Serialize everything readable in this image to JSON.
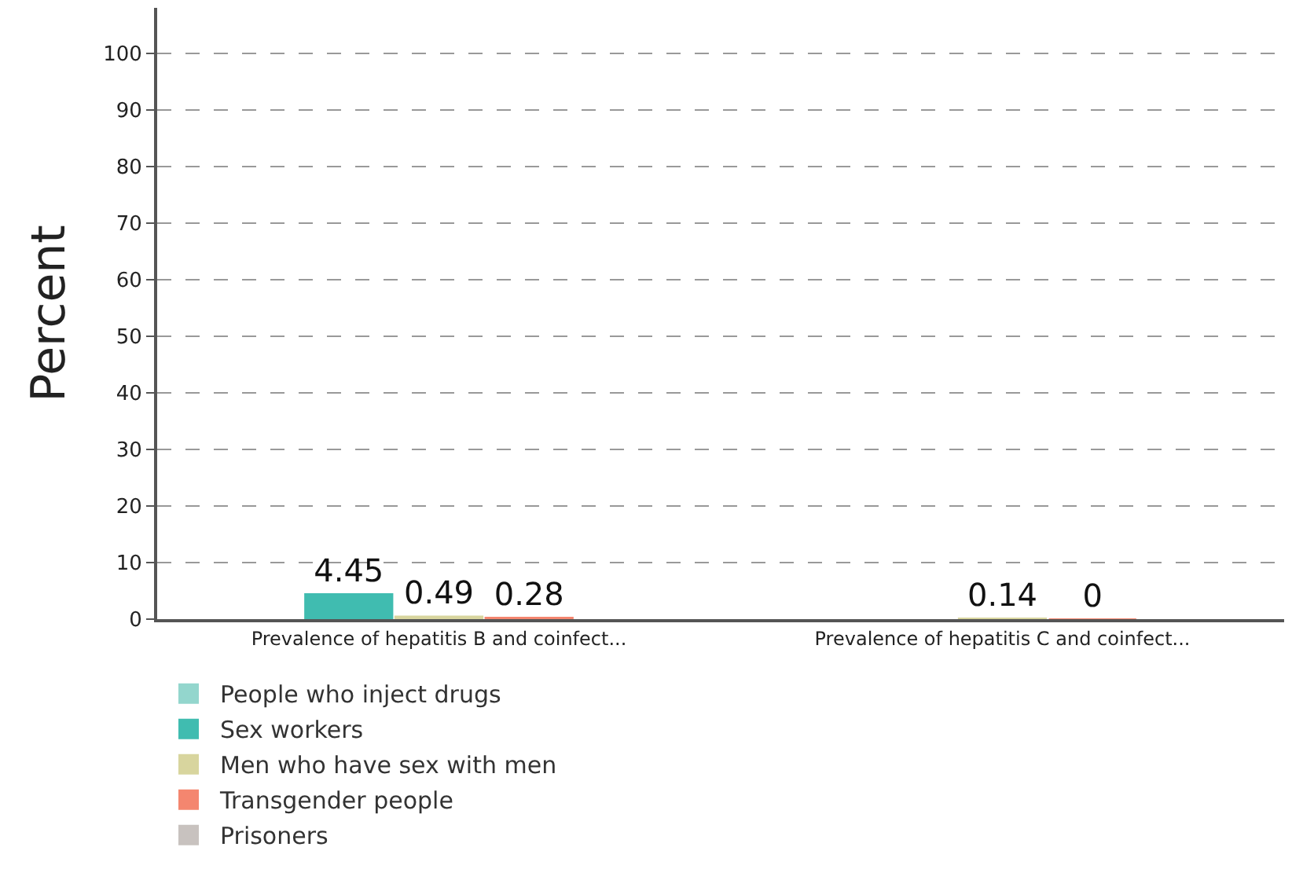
{
  "chart_data": {
    "type": "bar",
    "ylabel": "Percent",
    "categories": [
      "Prevalence of hepatitis B and coinfect...",
      "Prevalence of hepatitis C and coinfect..."
    ],
    "series": [
      {
        "name": "People who inject drugs",
        "color": "#93d6cd",
        "values": [
          null,
          null
        ]
      },
      {
        "name": "Sex workers",
        "color": "#40bcb0",
        "values": [
          4.45,
          null
        ]
      },
      {
        "name": "Men who have sex with men",
        "color": "#d8d59e",
        "values": [
          0.49,
          0.14
        ]
      },
      {
        "name": "Transgender people",
        "color": "#f4866f",
        "values": [
          0.28,
          0
        ]
      },
      {
        "name": "Prisoners",
        "color": "#c8c2bf",
        "values": [
          null,
          null
        ]
      }
    ],
    "ylim": [
      0,
      108
    ],
    "yticks": [
      0,
      10,
      20,
      30,
      40,
      50,
      60,
      70,
      80,
      90,
      100
    ],
    "grid": "y",
    "legend": "bottom",
    "data_labels": true
  }
}
